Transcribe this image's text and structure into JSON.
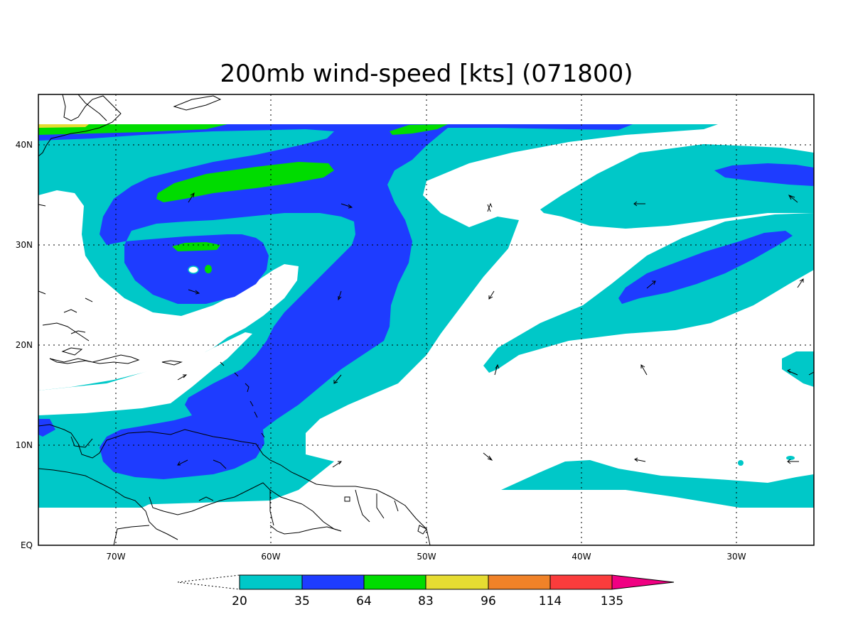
{
  "title": "200mb wind-speed [kts] (071800)",
  "map": {
    "lon_labels": [
      "70W",
      "60W",
      "50W",
      "40W",
      "30W"
    ],
    "lat_labels": [
      "40N",
      "30N",
      "20N",
      "10N",
      "EQ"
    ],
    "lon_range": [
      -75,
      -25
    ],
    "lat_range": [
      0,
      45
    ],
    "grid": "dotted"
  },
  "colorbar": {
    "levels": [
      "20",
      "35",
      "64",
      "83",
      "96",
      "114",
      "135"
    ],
    "colors": [
      "#ffffff",
      "#00c8c8",
      "#1e3cff",
      "#00dc00",
      "#e6dc32",
      "#f08228",
      "#fa3c3c",
      "#f00082"
    ],
    "names": {
      "below_20": "white",
      "20_35": "cyan",
      "35_64": "blue",
      "64_83": "green",
      "83_96": "yellow",
      "96_114": "orange",
      "114_135": "red",
      "above_135": "magenta"
    }
  },
  "colors": {
    "cyan": "#00c8c8",
    "blue": "#1e3cff",
    "green": "#00dc00",
    "yellow": "#e6dc32",
    "coast": "#000000"
  }
}
